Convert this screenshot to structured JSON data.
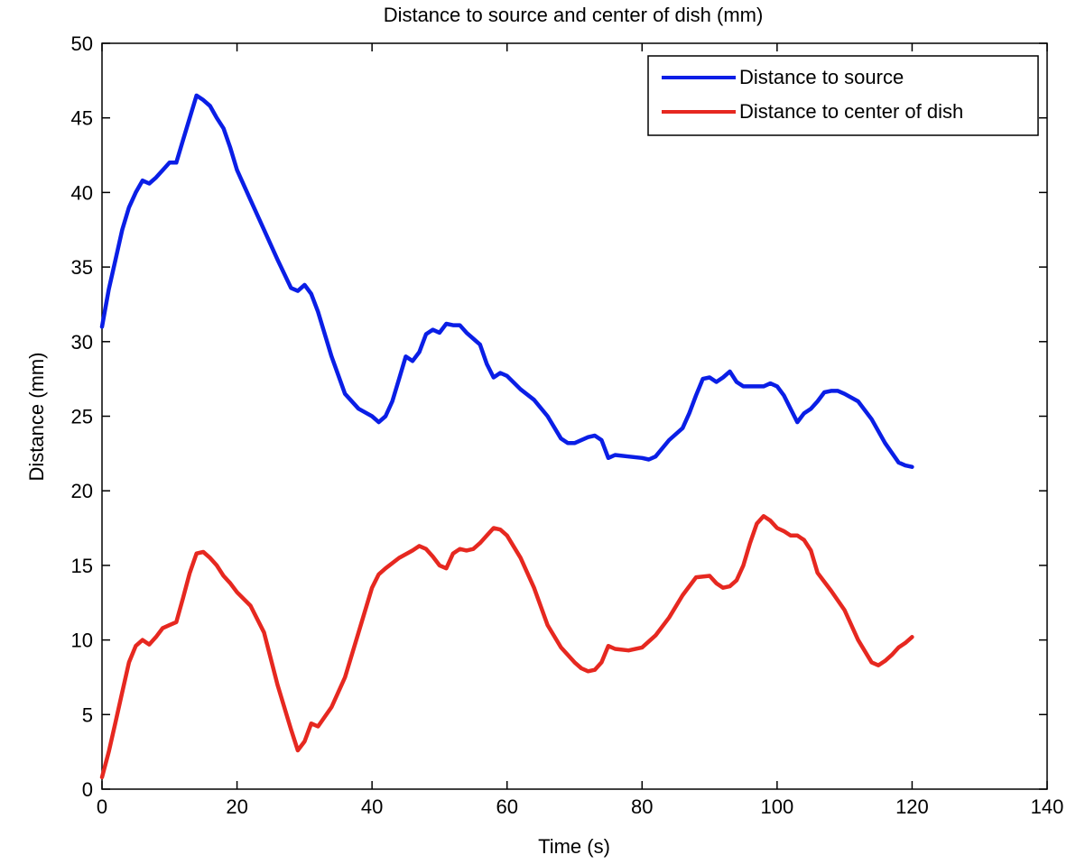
{
  "chart_data": {
    "type": "line",
    "title": "Distance to source and center of dish (mm)",
    "xlabel": "Time (s)",
    "ylabel": "Distance (mm)",
    "xlim": [
      0,
      140
    ],
    "ylim": [
      0,
      50
    ],
    "xticks": [
      0,
      20,
      40,
      60,
      80,
      100,
      120,
      140
    ],
    "yticks": [
      0,
      5,
      10,
      15,
      20,
      25,
      30,
      35,
      40,
      45,
      50
    ],
    "grid": false,
    "legend_position": "top-right",
    "series": [
      {
        "name": "Distance to source",
        "color": "#0a1ee6",
        "x": [
          0,
          1,
          2,
          3,
          4,
          5,
          6,
          7,
          8,
          9,
          10,
          11,
          12,
          13,
          14,
          15,
          16,
          17,
          18,
          19,
          20,
          22,
          24,
          26,
          28,
          29,
          30,
          31,
          32,
          34,
          36,
          38,
          40,
          41,
          42,
          43,
          44,
          45,
          46,
          47,
          48,
          49,
          50,
          51,
          52,
          53,
          54,
          55,
          56,
          57,
          58,
          59,
          60,
          62,
          64,
          66,
          68,
          69,
          70,
          72,
          73,
          74,
          75,
          76,
          78,
          80,
          81,
          82,
          84,
          86,
          87,
          88,
          89,
          90,
          91,
          92,
          93,
          94,
          95,
          96,
          98,
          99,
          100,
          101,
          102,
          103,
          104,
          105,
          106,
          107,
          108,
          109,
          110,
          112,
          114,
          116,
          118,
          119,
          120
        ],
        "y": [
          31,
          33.5,
          35.5,
          37.5,
          39,
          40,
          40.8,
          40.6,
          41,
          41.5,
          42,
          42,
          43.5,
          45,
          46.5,
          46.2,
          45.8,
          45,
          44.3,
          43,
          41.5,
          39.5,
          37.5,
          35.5,
          33.6,
          33.4,
          33.8,
          33.2,
          32,
          29,
          26.5,
          25.5,
          25,
          24.6,
          25,
          26,
          27.5,
          29,
          28.7,
          29.3,
          30.5,
          30.8,
          30.6,
          31.2,
          31.1,
          31.1,
          30.6,
          30.2,
          29.8,
          28.5,
          27.6,
          27.9,
          27.7,
          26.8,
          26.1,
          25,
          23.5,
          23.2,
          23.2,
          23.6,
          23.7,
          23.4,
          22.2,
          22.4,
          22.3,
          22.2,
          22.1,
          22.3,
          23.4,
          24.2,
          25.2,
          26.4,
          27.5,
          27.6,
          27.3,
          27.6,
          28,
          27.3,
          27,
          27,
          27,
          27.2,
          27,
          26.4,
          25.5,
          24.6,
          25.2,
          25.5,
          26,
          26.6,
          26.7,
          26.7,
          26.5,
          26,
          24.8,
          23.2,
          21.9,
          21.7,
          21.6
        ]
      },
      {
        "name": "Distance to center of dish",
        "color": "#e62820",
        "x": [
          0,
          1,
          2,
          3,
          4,
          5,
          6,
          7,
          8,
          9,
          10,
          11,
          12,
          13,
          14,
          15,
          16,
          17,
          18,
          19,
          20,
          22,
          24,
          26,
          28,
          29,
          30,
          31,
          32,
          34,
          36,
          38,
          40,
          41,
          42,
          44,
          46,
          47,
          48,
          49,
          50,
          51,
          52,
          53,
          54,
          55,
          56,
          57,
          58,
          59,
          60,
          62,
          64,
          66,
          68,
          70,
          71,
          72,
          73,
          74,
          75,
          76,
          78,
          80,
          82,
          84,
          86,
          88,
          90,
          91,
          92,
          93,
          94,
          95,
          96,
          97,
          98,
          99,
          100,
          101,
          102,
          103,
          104,
          105,
          106,
          108,
          110,
          112,
          114,
          115,
          116,
          117,
          118,
          119,
          120
        ],
        "y": [
          0.8,
          2.5,
          4.5,
          6.5,
          8.5,
          9.6,
          10,
          9.7,
          10.2,
          10.8,
          11,
          11.2,
          12.8,
          14.5,
          15.8,
          15.9,
          15.5,
          15,
          14.3,
          13.8,
          13.2,
          12.3,
          10.5,
          7,
          4,
          2.6,
          3.2,
          4.4,
          4.2,
          5.5,
          7.5,
          10.5,
          13.5,
          14.4,
          14.8,
          15.5,
          16,
          16.3,
          16.1,
          15.6,
          15,
          14.8,
          15.8,
          16.1,
          16,
          16.1,
          16.5,
          17,
          17.5,
          17.4,
          17,
          15.5,
          13.5,
          11,
          9.5,
          8.5,
          8.1,
          7.9,
          8,
          8.5,
          9.6,
          9.4,
          9.3,
          9.5,
          10.3,
          11.5,
          13,
          14.2,
          14.3,
          13.8,
          13.5,
          13.6,
          14,
          15,
          16.5,
          17.8,
          18.3,
          18,
          17.5,
          17.3,
          17,
          17,
          16.7,
          16,
          14.5,
          13.3,
          12,
          10,
          8.5,
          8.3,
          8.6,
          9,
          9.5,
          9.8,
          10.2
        ]
      }
    ]
  }
}
